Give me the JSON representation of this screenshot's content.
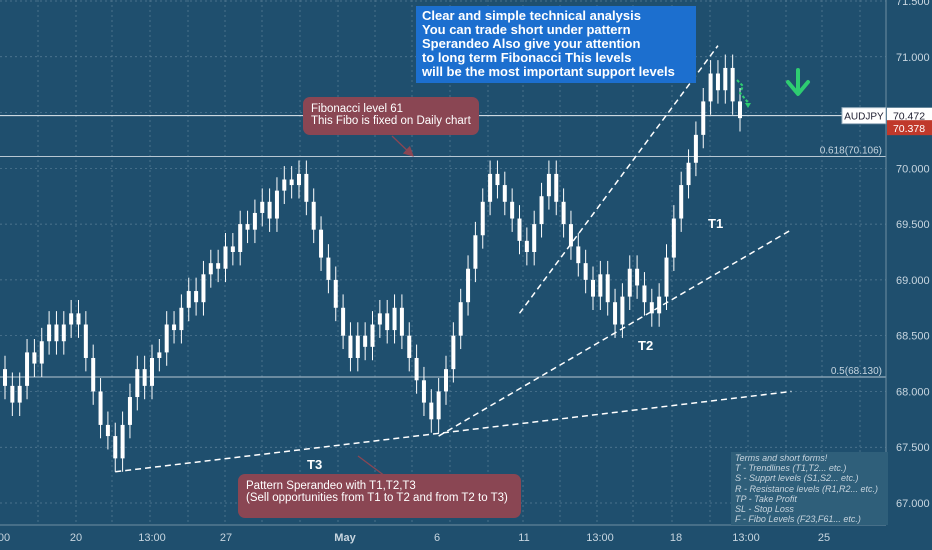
{
  "chart_data": {
    "type": "candlestick",
    "symbol": "AUDJPY",
    "price_scale": {
      "ticks": [
        "67.000",
        "67.500",
        "68.000",
        "68.500",
        "69.000",
        "69.500",
        "70.000",
        "70.500",
        "71.000",
        "71.500"
      ],
      "ylim": [
        66.95,
        71.55
      ]
    },
    "time_axis": {
      "labels": [
        "00",
        "20",
        "13:00",
        "27",
        "May",
        "6",
        "11",
        "13:00",
        "18",
        "13:00",
        "25"
      ]
    },
    "last_price": {
      "label": "AUDJPY",
      "value": "70.472",
      "color": "#ffffff"
    },
    "alt_price": {
      "value": "70.378",
      "color": "#c0392b"
    },
    "fib_levels": [
      {
        "label": "0.618(70.106)",
        "value": 70.106
      },
      {
        "label": "0.5(68.130)",
        "value": 68.13
      }
    ],
    "trendlines": [
      {
        "label": "T1",
        "from": [
          70,
          68.7
        ],
        "to": [
          97,
          71.1
        ]
      },
      {
        "label": "T2",
        "from": [
          59,
          67.6
        ],
        "to": [
          107,
          69.45
        ]
      },
      {
        "label": "T3",
        "from": [
          15,
          67.28
        ],
        "to": [
          107,
          68.0
        ]
      }
    ],
    "markers": {
      "down_arrow_color": "#2ecc71"
    },
    "candles": [
      [
        0,
        68.2,
        68.05
      ],
      [
        1,
        68.05,
        67.9
      ],
      [
        2,
        67.9,
        68.05
      ],
      [
        3,
        68.05,
        68.35
      ],
      [
        4,
        68.35,
        68.25
      ],
      [
        5,
        68.25,
        68.45
      ],
      [
        6,
        68.45,
        68.6
      ],
      [
        7,
        68.6,
        68.45
      ],
      [
        8,
        68.45,
        68.6
      ],
      [
        9,
        68.6,
        68.7
      ],
      [
        10,
        68.7,
        68.6
      ],
      [
        11,
        68.6,
        68.3
      ],
      [
        12,
        68.3,
        68.0
      ],
      [
        13,
        68.0,
        67.7
      ],
      [
        14,
        67.7,
        67.6
      ],
      [
        15,
        67.6,
        67.4
      ],
      [
        16,
        67.4,
        67.7
      ],
      [
        17,
        67.7,
        67.95
      ],
      [
        18,
        67.95,
        68.2
      ],
      [
        19,
        68.2,
        68.05
      ],
      [
        20,
        68.05,
        68.3
      ],
      [
        21,
        68.3,
        68.35
      ],
      [
        22,
        68.35,
        68.6
      ],
      [
        23,
        68.6,
        68.55
      ],
      [
        24,
        68.55,
        68.75
      ],
      [
        25,
        68.75,
        68.9
      ],
      [
        26,
        68.9,
        68.8
      ],
      [
        27,
        68.8,
        69.05
      ],
      [
        28,
        69.05,
        69.15
      ],
      [
        29,
        69.15,
        69.1
      ],
      [
        30,
        69.1,
        69.3
      ],
      [
        31,
        69.3,
        69.25
      ],
      [
        32,
        69.25,
        69.5
      ],
      [
        33,
        69.5,
        69.45
      ],
      [
        34,
        69.45,
        69.6
      ],
      [
        35,
        69.6,
        69.7
      ],
      [
        36,
        69.7,
        69.55
      ],
      [
        37,
        69.55,
        69.8
      ],
      [
        38,
        69.8,
        69.9
      ],
      [
        39,
        69.9,
        69.85
      ],
      [
        40,
        69.85,
        69.95
      ],
      [
        41,
        69.95,
        69.7
      ],
      [
        42,
        69.7,
        69.45
      ],
      [
        43,
        69.45,
        69.2
      ],
      [
        44,
        69.2,
        69.0
      ],
      [
        45,
        69.0,
        68.75
      ],
      [
        46,
        68.75,
        68.5
      ],
      [
        47,
        68.5,
        68.3
      ],
      [
        48,
        68.3,
        68.5
      ],
      [
        49,
        68.5,
        68.4
      ],
      [
        50,
        68.4,
        68.6
      ],
      [
        51,
        68.6,
        68.7
      ],
      [
        52,
        68.7,
        68.55
      ],
      [
        53,
        68.55,
        68.75
      ],
      [
        54,
        68.75,
        68.5
      ],
      [
        55,
        68.5,
        68.3
      ],
      [
        56,
        68.3,
        68.1
      ],
      [
        57,
        68.1,
        67.9
      ],
      [
        58,
        67.9,
        67.75
      ],
      [
        59,
        67.75,
        68.0
      ],
      [
        60,
        68.0,
        68.2
      ],
      [
        61,
        68.2,
        68.5
      ],
      [
        62,
        68.5,
        68.8
      ],
      [
        63,
        68.8,
        69.1
      ],
      [
        64,
        69.1,
        69.4
      ],
      [
        65,
        69.4,
        69.7
      ],
      [
        66,
        69.7,
        69.95
      ],
      [
        67,
        69.95,
        69.85
      ],
      [
        68,
        69.85,
        69.7
      ],
      [
        69,
        69.7,
        69.55
      ],
      [
        70,
        69.55,
        69.35
      ],
      [
        71,
        69.35,
        69.25
      ],
      [
        72,
        69.25,
        69.5
      ],
      [
        73,
        69.5,
        69.75
      ],
      [
        74,
        69.75,
        69.95
      ],
      [
        75,
        69.95,
        69.7
      ],
      [
        76,
        69.7,
        69.5
      ],
      [
        77,
        69.5,
        69.3
      ],
      [
        78,
        69.3,
        69.15
      ],
      [
        79,
        69.15,
        69.0
      ],
      [
        80,
        69.0,
        68.85
      ],
      [
        81,
        68.85,
        69.05
      ],
      [
        82,
        69.05,
        68.8
      ],
      [
        83,
        68.8,
        68.6
      ],
      [
        84,
        68.6,
        68.85
      ],
      [
        85,
        68.85,
        69.1
      ],
      [
        86,
        69.1,
        68.95
      ],
      [
        87,
        68.95,
        68.8
      ],
      [
        88,
        68.8,
        68.7
      ],
      [
        89,
        68.7,
        68.85
      ],
      [
        90,
        68.85,
        69.2
      ],
      [
        91,
        69.2,
        69.55
      ],
      [
        92,
        69.55,
        69.85
      ],
      [
        93,
        69.85,
        70.05
      ],
      [
        94,
        70.05,
        70.3
      ],
      [
        95,
        70.3,
        70.6
      ],
      [
        96,
        70.6,
        70.85
      ],
      [
        97,
        70.85,
        70.7
      ],
      [
        98,
        70.7,
        70.9
      ],
      [
        99,
        70.9,
        70.6
      ],
      [
        100,
        70.6,
        70.45
      ]
    ]
  },
  "annotations": {
    "blue_note": [
      "Clear and simple technical analysis",
      "You can trade short under pattern",
      "Sperandeo Also give your attention",
      "to long term Fibonacci This levels",
      "will be the most important support levels"
    ],
    "fib_note": [
      "Fibonacci level 61",
      "This  Fibo is fixed on Daily chart"
    ],
    "pattern_note": [
      "Pattern Sperandeo with T1,T2,T3",
      "(Sell opportunities from T1 to T2 and from T2 to T3)"
    ],
    "legend": [
      "Terms and short forms!",
      "T - Trendlines (T1,T2... etc.)",
      "S - Supprt levels (S1,S2... etc.)",
      "R - Resistance levels (R1,R2... etc.)",
      "TP - Take Profit",
      "SL - Stop Loss",
      "F - Fibo Levels  (F23,F61... etc.)"
    ]
  },
  "colors": {
    "background": "#1f4f6e",
    "candle": "#ffffff",
    "grid": "#5a7f97",
    "axis_text": "#c8d6e0",
    "note_blue": "#1c6fcf",
    "note_red": "#8a4653"
  }
}
